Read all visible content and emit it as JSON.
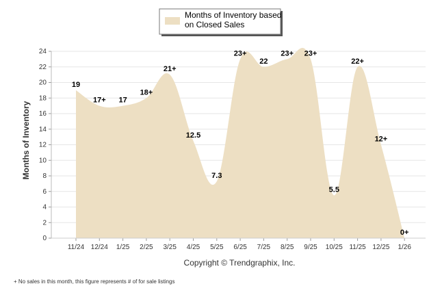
{
  "chart_data": {
    "type": "area",
    "categories": [
      "11/24",
      "12/24",
      "1/25",
      "2/25",
      "3/25",
      "4/25",
      "5/25",
      "6/25",
      "7/25",
      "8/25",
      "9/25",
      "10/25",
      "11/25",
      "12/25",
      "1/26"
    ],
    "series": [
      {
        "name": "Months of Inventory based on Closed Sales",
        "values": [
          19,
          17,
          17,
          18,
          21,
          12.5,
          7.3,
          23,
          22,
          23,
          23,
          5.5,
          22,
          12,
          0
        ],
        "labels": [
          "19",
          "17+",
          "17",
          "18+",
          "21+",
          "12.5",
          "7.3",
          "23+",
          "22",
          "23+",
          "23+",
          "5.5",
          "22+",
          "12+",
          "0+"
        ],
        "color": "#EDDFC3"
      }
    ],
    "title": "",
    "xlabel": "",
    "ylabel": "Months of Inventory",
    "ylim": [
      0,
      24
    ],
    "yticks": [
      0,
      2,
      4,
      6,
      8,
      10,
      12,
      14,
      16,
      18,
      20,
      22,
      24
    ],
    "grid": true,
    "legend_position": "top-center"
  },
  "legend": {
    "line1": "Months of Inventory based",
    "line2": "on Closed Sales"
  },
  "copyright": "Copyright © Trendgraphix, Inc.",
  "footnote": "+ No sales in this month, this figure represents # of for sale listings"
}
